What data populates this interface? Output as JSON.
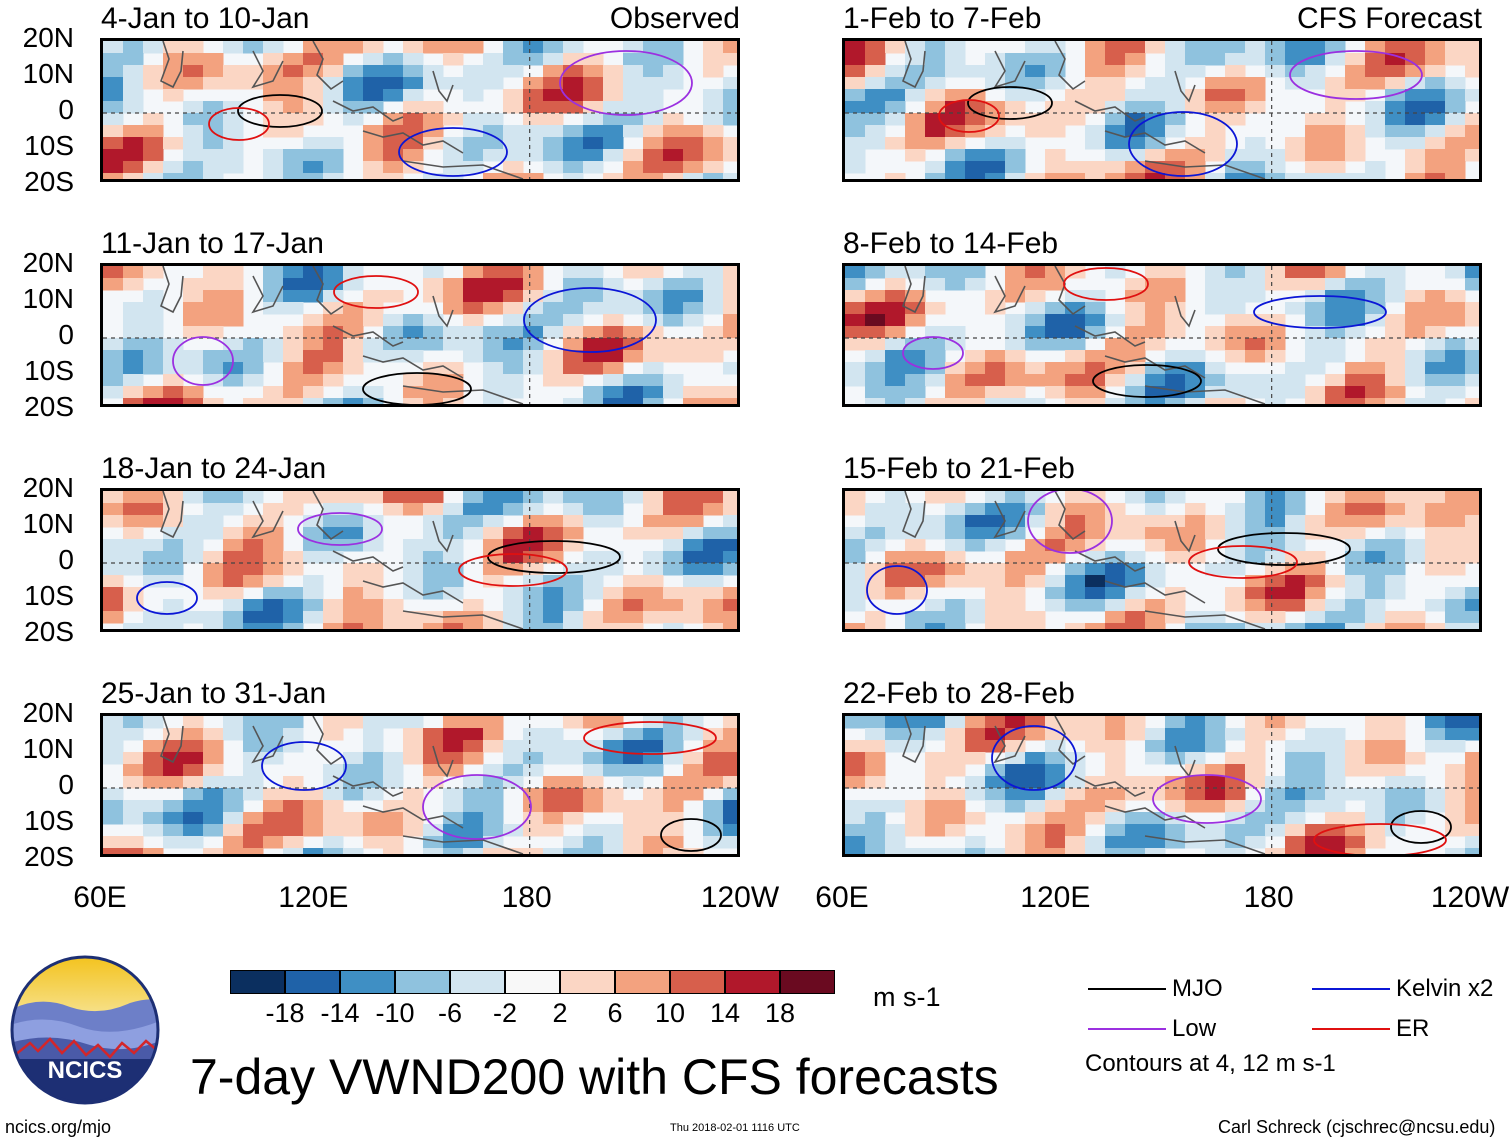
{
  "chart_data": {
    "type": "heatmap",
    "title": "7-day VWND200 with CFS forecasts",
    "units": "m s-1",
    "columns": [
      {
        "label": "Observed",
        "panels": [
          "4-Jan to 10-Jan",
          "11-Jan to 17-Jan",
          "18-Jan to 24-Jan",
          "25-Jan to 31-Jan"
        ]
      },
      {
        "label": "CFS Forecast",
        "panels": [
          "1-Feb to 7-Feb",
          "8-Feb to 14-Feb",
          "15-Feb to 21-Feb",
          "22-Feb to 28-Feb"
        ]
      }
    ],
    "lat_ticks": [
      "20N",
      "10N",
      "0",
      "10S",
      "20S"
    ],
    "lat_range": [
      -20,
      20
    ],
    "lon_ticks": [
      "60E",
      "120E",
      "180",
      "120W"
    ],
    "lon_range": [
      60,
      240
    ],
    "colorbar": {
      "ticks": [
        "-18",
        "-14",
        "-10",
        "-6",
        "-2",
        "2",
        "6",
        "10",
        "14",
        "18"
      ],
      "colors": [
        "#0b2f5f",
        "#1f62a8",
        "#3f8fc4",
        "#8fc2de",
        "#d2e5f0",
        "#f8f8f8",
        "#fbd6c4",
        "#f3a27f",
        "#d75f4c",
        "#b1182b",
        "#6a0a20"
      ]
    },
    "legend": [
      {
        "label": "MJO",
        "color": "#000000"
      },
      {
        "label": "Kelvin x2",
        "color": "#0b16d6"
      },
      {
        "label": "Low",
        "color": "#9b30e0"
      },
      {
        "label": "ER",
        "color": "#e01010"
      }
    ],
    "contour_note": "Contours at 4, 12 m s-1"
  },
  "footer": {
    "logo_text": "NCICS",
    "url": "ncics.org/mjo",
    "timestamp": "Thu 2018-02-01 1116 UTC",
    "author": "Carl Schreck (cjschrec@ncsu.edu)"
  }
}
